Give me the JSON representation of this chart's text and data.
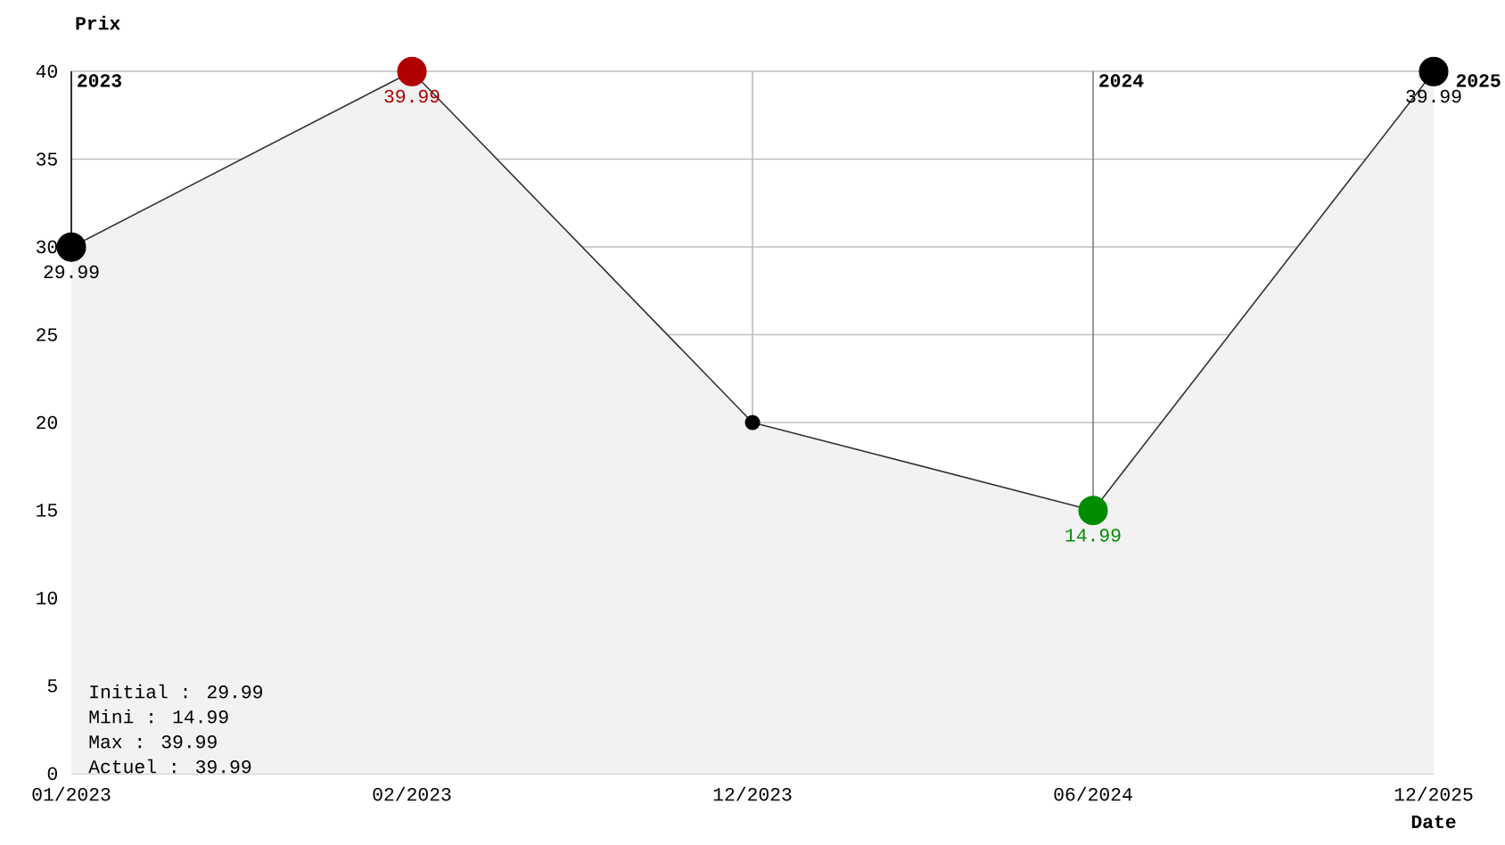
{
  "chart_data": {
    "type": "area",
    "xlabel": "Date",
    "ylabel": "Prix",
    "categories": [
      "01/2023",
      "02/2023",
      "12/2023",
      "06/2024",
      "12/2025"
    ],
    "values": [
      29.99,
      39.99,
      20,
      14.99,
      39.99
    ],
    "color": "#333333",
    "colors": [
      "#000000",
      "#b00000",
      "#000000",
      "#008c00",
      "#000000"
    ],
    "value_labels": [
      "29.99",
      "39.99",
      null,
      "14.99",
      "39.99"
    ],
    "marker": "circle",
    "ylim": [
      0,
      40
    ],
    "yticks": [
      0,
      5,
      10,
      15,
      20,
      25,
      30,
      35,
      40
    ],
    "grid": "y",
    "ref_lines": [
      {
        "axis": "x",
        "value": "01/2023",
        "label": "2023",
        "color": "#000000"
      },
      {
        "axis": "x",
        "value": "12/2023",
        "label": null,
        "color": "#bbbbbb"
      },
      {
        "axis": "x",
        "value": "06/2024",
        "label": "2024",
        "color": "#808080"
      }
    ],
    "annotations": [
      "Initial : 29.99",
      "Mini : 14.99",
      "Max : 39.99",
      "Actuel : 39.99",
      {
        "text": "2025",
        "x": "12/2025",
        "y": 40
      }
    ]
  }
}
